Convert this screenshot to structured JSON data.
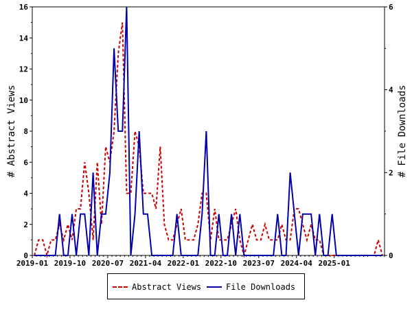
{
  "chart_data": {
    "type": "line",
    "x_tick_labels": [
      "2019-01",
      "2019-10",
      "2020-07",
      "2021-04",
      "2022-01",
      "2022-10",
      "2023-07",
      "2024-04",
      "2025-01"
    ],
    "y_left": {
      "label": "# Abstract Views",
      "ticks": [
        "0",
        "2",
        "4",
        "6",
        "8",
        "10",
        "12",
        "14",
        "16"
      ],
      "ylim": [
        0,
        16
      ]
    },
    "y_right": {
      "label": "# File Downloads",
      "ticks": [
        "0",
        "2",
        "4",
        "6"
      ],
      "ylim": [
        0,
        6
      ]
    },
    "grid": false,
    "legend_position": "bottom",
    "months": 84,
    "series": [
      {
        "name": "Abstract Views",
        "axis": "left",
        "color": "#cc0000",
        "style": "dashed",
        "values": [
          0,
          1,
          1,
          0,
          1,
          1,
          2,
          1,
          2,
          1,
          3,
          3,
          6,
          4,
          1,
          6,
          2,
          7,
          6,
          8,
          13,
          15,
          4,
          4,
          8,
          7,
          4,
          4,
          4,
          3,
          7,
          2,
          1,
          1,
          2,
          3,
          1,
          1,
          1,
          2,
          4,
          4,
          1,
          3,
          1,
          1,
          1,
          2,
          3,
          1,
          0,
          1,
          2,
          1,
          1,
          2,
          1,
          1,
          1,
          2,
          1,
          1,
          3,
          3,
          2,
          1,
          2,
          1,
          1,
          0,
          0,
          0,
          0,
          0,
          0,
          0,
          0,
          0,
          0,
          0,
          0,
          0,
          1,
          0
        ]
      },
      {
        "name": "File Downloads",
        "axis": "right",
        "color": "#0000aa",
        "style": "solid",
        "values": [
          0,
          0,
          0,
          0,
          0,
          0,
          1,
          0,
          0,
          1,
          0,
          1,
          1,
          0,
          2,
          0,
          1,
          1,
          2,
          5,
          3,
          3,
          6,
          0,
          1,
          3,
          1,
          1,
          0,
          0,
          0,
          0,
          0,
          0,
          1,
          0,
          0,
          0,
          0,
          0,
          1,
          3,
          0,
          0,
          1,
          0,
          0,
          1,
          0,
          1,
          0,
          0,
          0,
          0,
          0,
          0,
          0,
          0,
          1,
          0,
          0,
          2,
          1,
          0,
          1,
          1,
          1,
          0,
          1,
          0,
          0,
          1,
          0,
          0,
          0,
          0,
          0,
          0,
          0,
          0,
          0,
          0,
          0,
          0
        ]
      }
    ]
  }
}
